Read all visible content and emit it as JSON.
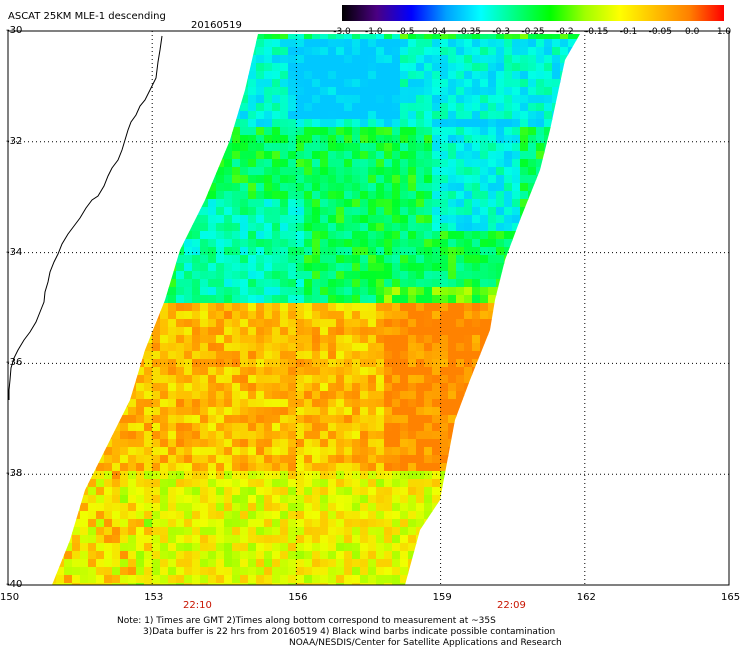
{
  "header": {
    "title": "ASCAT 25KM MLE-1 descending",
    "date": "20160519"
  },
  "colorbar": {
    "ticks": [
      "-3.0",
      "-1.0",
      "-0.5",
      "-0.4",
      "-0.35",
      "-0.3",
      "-0.25",
      "-0.2",
      "-0.15",
      "-0.1",
      "-0.05",
      "0.0",
      "1.0"
    ],
    "colors": [
      "#000000",
      "#4b0082",
      "#0000ff",
      "#00a0ff",
      "#00ffff",
      "#00ff80",
      "#00ff00",
      "#a0ff00",
      "#ffff00",
      "#ffc000",
      "#ff8000",
      "#ff0000"
    ]
  },
  "axes": {
    "lat_labels": [
      "-30",
      "-32",
      "-34",
      "-36",
      "-38",
      "-40"
    ],
    "lon_labels": [
      "150",
      "153",
      "156",
      "159",
      "162",
      "165"
    ],
    "lat_range": [
      -40,
      -30
    ],
    "lon_range": [
      150,
      165
    ]
  },
  "time_labels": [
    "22:10",
    "22:09"
  ],
  "notes": {
    "line1": "Note: 1) Times are GMT 2)Times along bottom correspond to measurement at ~35S",
    "line2": "3)Data buffer is 22 hrs from 20160519 4) Black wind barbs indicate possible contamination",
    "line3": "NOAA/NESDIS/Center for Satellite Applications and Research"
  },
  "swath_regions": [
    {
      "name": "north-cyan",
      "lat_top": -30.1,
      "lat_bottom": -31.6,
      "value": -0.3
    },
    {
      "name": "north-green",
      "lat_top": -31.6,
      "lat_bottom": -34.8,
      "value": -0.22
    },
    {
      "name": "south-orange",
      "lat_top": -34.8,
      "lat_bottom": -37.8,
      "value": -0.05
    },
    {
      "name": "south-yellow",
      "lat_top": -37.8,
      "lat_bottom": -40.0,
      "value": -0.1
    }
  ]
}
